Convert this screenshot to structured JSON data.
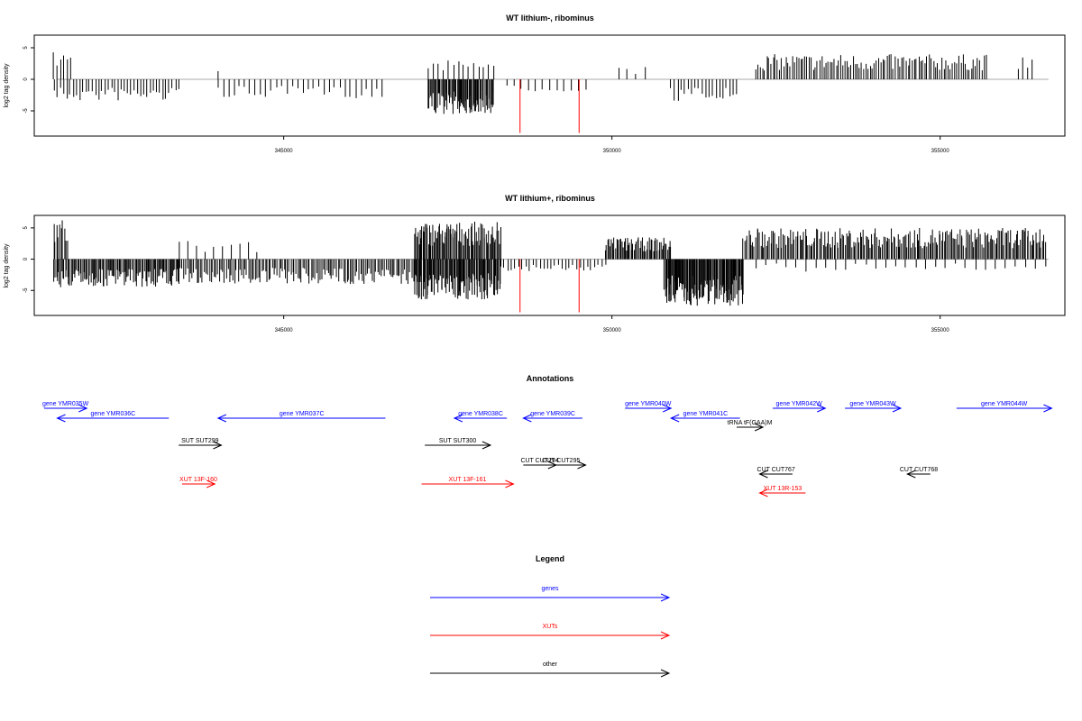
{
  "colors": {
    "gene": "#0000ff",
    "xut": "#ff0000",
    "other": "#000000",
    "baseline": "#aaaaaa",
    "highlight": "#ff0000"
  },
  "chart_data": [
    {
      "type": "bar",
      "title": "WT lithium-, ribominus",
      "ylabel": "log2 tag density",
      "xlim": [
        341200,
        356900
      ],
      "ylim": [
        -9,
        7
      ],
      "xticks": [
        345000,
        350000,
        355000
      ],
      "yticks": [
        5,
        0,
        -5
      ],
      "segments": [
        {
          "start": 341500,
          "end": 341750,
          "count": 6,
          "direction": "up",
          "max": 4.5
        },
        {
          "start": 341500,
          "end": 343400,
          "count": 40,
          "direction": "down",
          "max": 3.5
        },
        {
          "start": 344000,
          "end": 344000,
          "count": 1,
          "direction": "up",
          "max": 2
        },
        {
          "start": 344000,
          "end": 346500,
          "count": 32,
          "direction": "down",
          "max": 3
        },
        {
          "start": 347200,
          "end": 348200,
          "count": 14,
          "direction": "up",
          "max": 3
        },
        {
          "start": 347200,
          "end": 348200,
          "count": 80,
          "direction": "down",
          "max": 5.5
        },
        {
          "start": 348400,
          "end": 349600,
          "count": 12,
          "direction": "down",
          "max": 2
        },
        {
          "start": 350100,
          "end": 350500,
          "count": 4,
          "direction": "up",
          "max": 2
        },
        {
          "start": 350900,
          "end": 351900,
          "count": 20,
          "direction": "down",
          "max": 3.5
        },
        {
          "start": 352200,
          "end": 355700,
          "count": 110,
          "direction": "up",
          "max": 4
        },
        {
          "start": 356200,
          "end": 356400,
          "count": 4,
          "direction": "up",
          "max": 3.5
        }
      ],
      "highlights": [
        {
          "x": 348600,
          "value": -8.5
        },
        {
          "x": 349500,
          "value": -8.5
        }
      ]
    },
    {
      "type": "bar",
      "title": "WT lithium+, ribominus",
      "ylabel": "log2 tag density",
      "xlim": [
        341200,
        356900
      ],
      "ylim": [
        -9,
        7
      ],
      "xticks": [
        345000,
        350000,
        355000
      ],
      "yticks": [
        5,
        0,
        -5
      ],
      "segments": [
        {
          "start": 341500,
          "end": 341700,
          "count": 10,
          "direction": "up",
          "max": 6.5
        },
        {
          "start": 341500,
          "end": 343400,
          "count": 110,
          "direction": "down",
          "max": 4.5
        },
        {
          "start": 343400,
          "end": 344600,
          "count": 10,
          "direction": "up",
          "max": 3
        },
        {
          "start": 343400,
          "end": 347000,
          "count": 140,
          "direction": "down",
          "max": 4
        },
        {
          "start": 347000,
          "end": 348300,
          "count": 90,
          "direction": "up",
          "max": 6
        },
        {
          "start": 347000,
          "end": 348300,
          "count": 110,
          "direction": "down",
          "max": 6.5
        },
        {
          "start": 348300,
          "end": 349900,
          "count": 30,
          "direction": "down",
          "max": 2
        },
        {
          "start": 349900,
          "end": 350900,
          "count": 60,
          "direction": "up",
          "max": 3.5
        },
        {
          "start": 350800,
          "end": 352000,
          "count": 120,
          "direction": "down",
          "max": 7.5
        },
        {
          "start": 352000,
          "end": 356600,
          "count": 220,
          "direction": "up",
          "max": 5
        },
        {
          "start": 352200,
          "end": 356600,
          "count": 30,
          "direction": "down",
          "max": 2
        }
      ],
      "highlights": [
        {
          "x": 348600,
          "value": -8.5
        },
        {
          "x": 349500,
          "value": -8.5
        }
      ]
    }
  ],
  "annotations": {
    "title": "Annotations",
    "items": [
      {
        "label": "gene YMR035W",
        "kind": "gene",
        "start": 341350,
        "end": 342000
      },
      {
        "label": "gene YMR036C",
        "kind": "gene",
        "start": 341550,
        "end": 343250,
        "reverse": true
      },
      {
        "label": "gene YMR037C",
        "kind": "gene",
        "start": 344000,
        "end": 346550,
        "reverse": true
      },
      {
        "label": "SUT SUT299",
        "kind": "other",
        "start": 343400,
        "end": 344050
      },
      {
        "label": "XUT 13F-160",
        "kind": "xut",
        "start": 343450,
        "end": 343950
      },
      {
        "label": "gene YMR038C",
        "kind": "gene",
        "start": 347600,
        "end": 348400,
        "reverse": true
      },
      {
        "label": "gene YMR039C",
        "kind": "gene",
        "start": 348650,
        "end": 349550,
        "reverse": true
      },
      {
        "label": "SUT SUT300",
        "kind": "other",
        "start": 347150,
        "end": 348150
      },
      {
        "label": "CUT CUT294",
        "kind": "other",
        "start": 348650,
        "end": 349150
      },
      {
        "label": "CUT CUT295",
        "kind": "other",
        "start": 348850,
        "end": 349600
      },
      {
        "label": "XUT 13F-161",
        "kind": "xut",
        "start": 347100,
        "end": 348500
      },
      {
        "label": "gene YMR040W",
        "kind": "gene",
        "start": 350200,
        "end": 350900
      },
      {
        "label": "gene YMR041C",
        "kind": "gene",
        "start": 350900,
        "end": 351950,
        "reverse": true
      },
      {
        "label": "tRNA tF(GAA)M",
        "kind": "other",
        "start": 351900,
        "end": 352300
      },
      {
        "label": "gene YMR042W",
        "kind": "gene",
        "start": 352450,
        "end": 353250
      },
      {
        "label": "gene YMR043W",
        "kind": "gene",
        "start": 353550,
        "end": 354400
      },
      {
        "label": "gene YMR044W",
        "kind": "gene",
        "start": 355250,
        "end": 356700
      },
      {
        "label": "CUT CUT767",
        "kind": "other",
        "start": 352250,
        "end": 352750,
        "reverse": true
      },
      {
        "label": "XUT 13R-153",
        "kind": "xut",
        "start": 352250,
        "end": 352950,
        "reverse": true
      },
      {
        "label": "CUT CUT768",
        "kind": "other",
        "start": 354500,
        "end": 354850,
        "reverse": true
      }
    ]
  },
  "legend": {
    "title": "Legend",
    "items": [
      {
        "label": "genes",
        "kind": "gene"
      },
      {
        "label": "XUTs",
        "kind": "xut"
      },
      {
        "label": "other",
        "kind": "other"
      }
    ]
  }
}
